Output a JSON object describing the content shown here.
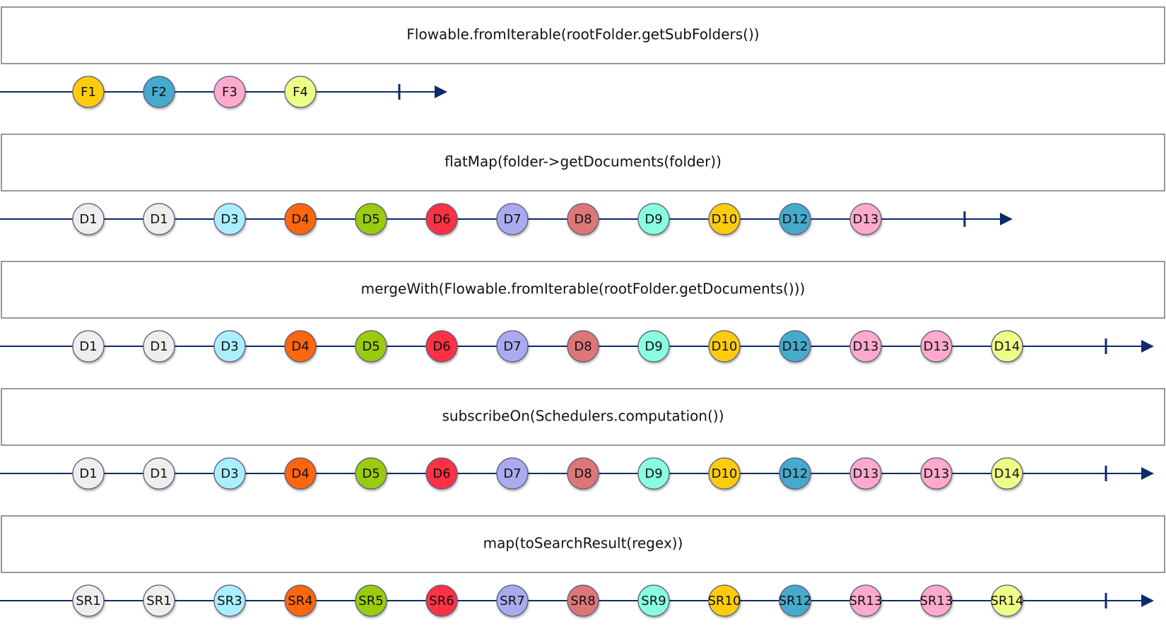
{
  "stages": [
    {
      "operator": "Flowable.fromIterable(rootFolder.getSubFolders())",
      "marbles": [
        {
          "label": "F1",
          "color": "#ffcc11"
        },
        {
          "label": "F2",
          "color": "#44aacc"
        },
        {
          "label": "F3",
          "color": "#ffaacc"
        },
        {
          "label": "F4",
          "color": "#eeff88"
        }
      ]
    },
    {
      "operator": "flatMap(folder->getDocuments(folder))",
      "marbles": [
        {
          "label": "D1",
          "color": "#eeeeee"
        },
        {
          "label": "D1",
          "color": "#eeeeee"
        },
        {
          "label": "D3",
          "color": "#aaeeff"
        },
        {
          "label": "D4",
          "color": "#ff6611"
        },
        {
          "label": "D5",
          "color": "#99cc11"
        },
        {
          "label": "D6",
          "color": "#ff3344"
        },
        {
          "label": "D7",
          "color": "#aaaaee"
        },
        {
          "label": "D8",
          "color": "#dd7777"
        },
        {
          "label": "D9",
          "color": "#88ffdd"
        },
        {
          "label": "D10",
          "color": "#ffcc11"
        },
        {
          "label": "D12",
          "color": "#44aacc"
        },
        {
          "label": "D13",
          "color": "#ffaacc"
        }
      ]
    },
    {
      "operator": "mergeWith(Flowable.fromIterable(rootFolder.getDocuments()))",
      "marbles": [
        {
          "label": "D1",
          "color": "#eeeeee"
        },
        {
          "label": "D1",
          "color": "#eeeeee"
        },
        {
          "label": "D3",
          "color": "#aaeeff"
        },
        {
          "label": "D4",
          "color": "#ff6611"
        },
        {
          "label": "D5",
          "color": "#99cc11"
        },
        {
          "label": "D6",
          "color": "#ff3344"
        },
        {
          "label": "D7",
          "color": "#aaaaee"
        },
        {
          "label": "D8",
          "color": "#dd7777"
        },
        {
          "label": "D9",
          "color": "#88ffdd"
        },
        {
          "label": "D10",
          "color": "#ffcc11"
        },
        {
          "label": "D12",
          "color": "#44aacc"
        },
        {
          "label": "D13",
          "color": "#ffaacc"
        },
        {
          "label": "D13",
          "color": "#ffaacc"
        },
        {
          "label": "D14",
          "color": "#eeff88"
        }
      ]
    },
    {
      "operator": "subscribeOn(Schedulers.computation())",
      "marbles": [
        {
          "label": "D1",
          "color": "#eeeeee"
        },
        {
          "label": "D1",
          "color": "#eeeeee"
        },
        {
          "label": "D3",
          "color": "#aaeeff"
        },
        {
          "label": "D4",
          "color": "#ff6611"
        },
        {
          "label": "D5",
          "color": "#99cc11"
        },
        {
          "label": "D6",
          "color": "#ff3344"
        },
        {
          "label": "D7",
          "color": "#aaaaee"
        },
        {
          "label": "D8",
          "color": "#dd7777"
        },
        {
          "label": "D9",
          "color": "#88ffdd"
        },
        {
          "label": "D10",
          "color": "#ffcc11"
        },
        {
          "label": "D12",
          "color": "#44aacc"
        },
        {
          "label": "D13",
          "color": "#ffaacc"
        },
        {
          "label": "D13",
          "color": "#ffaacc"
        },
        {
          "label": "D14",
          "color": "#eeff88"
        }
      ]
    },
    {
      "operator": "map(toSearchResult(regex))",
      "marbles": [
        {
          "label": "SR1",
          "color": "#eeeeee"
        },
        {
          "label": "SR1",
          "color": "#eeeeee"
        },
        {
          "label": "SR3",
          "color": "#aaeeff"
        },
        {
          "label": "SR4",
          "color": "#ff6611"
        },
        {
          "label": "SR5",
          "color": "#99cc11"
        },
        {
          "label": "SR6",
          "color": "#ff3344"
        },
        {
          "label": "SR7",
          "color": "#aaaaee"
        },
        {
          "label": "SR8",
          "color": "#dd7777"
        },
        {
          "label": "SR9",
          "color": "#88ffdd"
        },
        {
          "label": "SR10",
          "color": "#ffcc11"
        },
        {
          "label": "SR12",
          "color": "#44aacc"
        },
        {
          "label": "SR13",
          "color": "#ffaacc"
        },
        {
          "label": "SR13",
          "color": "#ffaacc"
        },
        {
          "label": "SR14",
          "color": "#eeff88"
        }
      ]
    }
  ]
}
